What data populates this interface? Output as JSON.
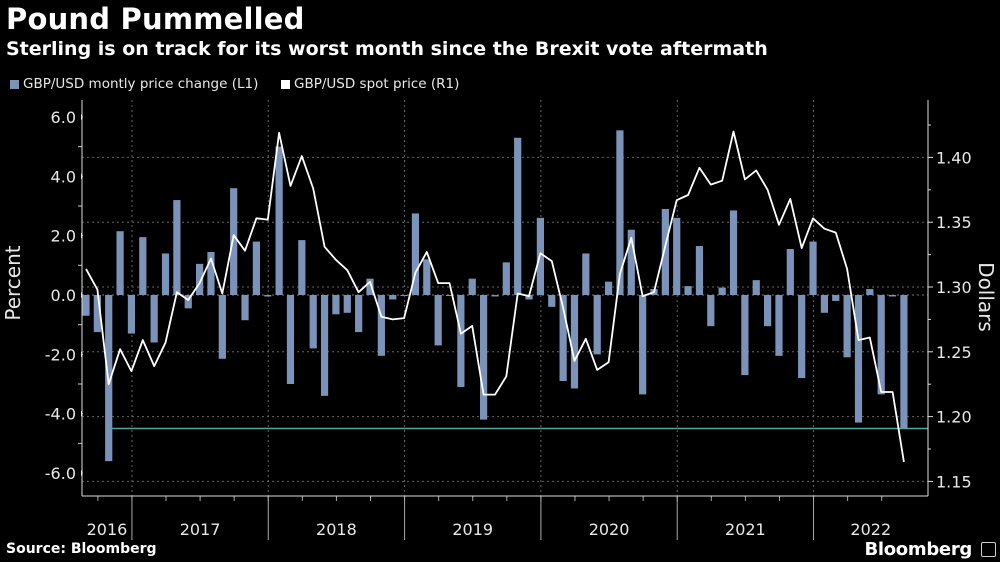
{
  "header": {
    "title": "Pound Pummelled",
    "subtitle": "Sterling is on track for its worst month since the Brexit vote aftermath"
  },
  "footer": {
    "source": "Source: Bloomberg",
    "brand": "Bloomberg"
  },
  "colors": {
    "bars": "#7b93b8",
    "line": "#ffffff",
    "reference_line": "#4fa89e",
    "background": "#000000"
  },
  "chart_data": {
    "type": "bar+line",
    "title": "Pound Pummelled",
    "subtitle": "Sterling is on track for its worst month since the Brexit vote aftermath",
    "legend": [
      "GBP/USD montly price change (L1)",
      "GBP/USD spot price (R1)"
    ],
    "legend_placement": "top-left",
    "ylabel_left": "Percent",
    "ylabel_right": "Dollars",
    "ylim_left": [
      -6.9,
      6.6
    ],
    "ylim_right": [
      1.137,
      1.445
    ],
    "yticks_left": [
      "6.0",
      "4.0",
      "2.0",
      "0.0",
      "-2.0",
      "-4.0",
      "-6.0"
    ],
    "yticks_right": [
      "1.40",
      "1.35",
      "1.30",
      "1.25",
      "1.20",
      "1.15"
    ],
    "x_year_labels": [
      "2016",
      "2017",
      "2018",
      "2019",
      "2020",
      "2021",
      "2022"
    ],
    "grid": true,
    "reference_line_left": -4.5,
    "start_month": "2016-08",
    "end_month": "2022-08",
    "series": [
      {
        "name": "GBP/USD montly price change (L1)",
        "axis": "left",
        "kind": "bar",
        "values": [
          -0.7,
          -1.25,
          -5.6,
          2.15,
          -1.3,
          1.95,
          -1.6,
          1.4,
          3.2,
          -0.45,
          1.05,
          1.45,
          -2.15,
          3.6,
          -0.85,
          1.8,
          -0.05,
          5.0,
          -3.0,
          1.85,
          -1.8,
          -3.4,
          -0.65,
          -0.6,
          -1.25,
          0.55,
          -2.05,
          -0.15,
          0.0,
          2.75,
          1.2,
          -1.7,
          0.0,
          -3.1,
          0.55,
          -4.2,
          -0.05,
          1.1,
          5.3,
          -0.15,
          2.6,
          -0.4,
          -2.9,
          -3.15,
          1.4,
          -2.0,
          0.45,
          5.55,
          2.2,
          -3.35,
          0.2,
          2.9,
          2.6,
          0.3,
          1.65,
          -1.05,
          0.25,
          2.85,
          -2.7,
          0.5,
          -1.05,
          -2.05,
          1.55,
          -2.8,
          1.8,
          -0.6,
          -0.2,
          -2.1,
          -4.3,
          0.2,
          -3.35,
          -0.05,
          -4.5
        ]
      },
      {
        "name": "GBP/USD spot price (R1)",
        "axis": "right",
        "kind": "line",
        "values": [
          1.314,
          1.298,
          1.225,
          1.252,
          1.235,
          1.259,
          1.239,
          1.257,
          1.296,
          1.29,
          1.303,
          1.322,
          1.295,
          1.34,
          1.328,
          1.353,
          1.352,
          1.419,
          1.378,
          1.401,
          1.376,
          1.331,
          1.321,
          1.313,
          1.296,
          1.304,
          1.277,
          1.275,
          1.276,
          1.311,
          1.327,
          1.303,
          1.303,
          1.264,
          1.27,
          1.217,
          1.217,
          1.231,
          1.295,
          1.293,
          1.326,
          1.32,
          1.284,
          1.243,
          1.26,
          1.236,
          1.242,
          1.31,
          1.338,
          1.293,
          1.296,
          1.332,
          1.367,
          1.371,
          1.392,
          1.379,
          1.382,
          1.42,
          1.383,
          1.39,
          1.375,
          1.348,
          1.368,
          1.33,
          1.353,
          1.345,
          1.342,
          1.314,
          1.259,
          1.261,
          1.219,
          1.219,
          1.165
        ]
      }
    ]
  }
}
